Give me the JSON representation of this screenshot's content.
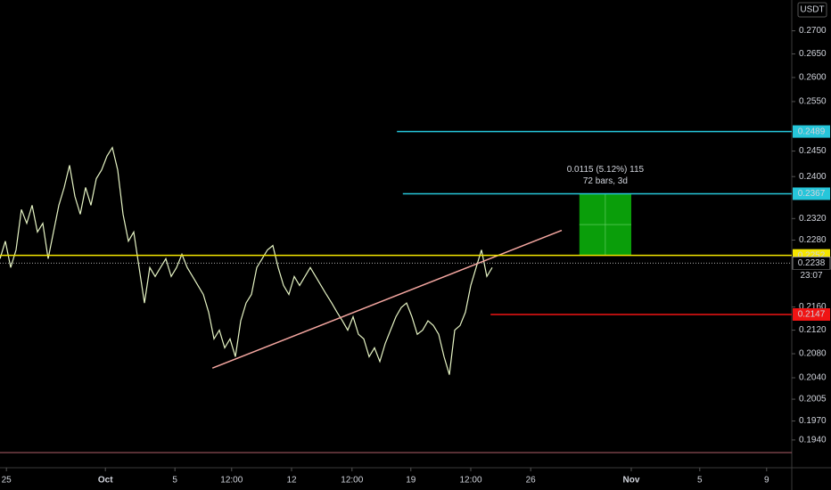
{
  "chart_data": {
    "type": "line",
    "currency": "USDT",
    "log_scale": true,
    "grid": false,
    "series": [
      {
        "color": "#e6f4c4",
        "values": [
          0.2246,
          0.2278,
          0.223,
          0.2262,
          0.2337,
          0.2311,
          0.2345,
          0.2295,
          0.2311,
          0.2246,
          0.2295,
          0.2345,
          0.2379,
          0.2422,
          0.2362,
          0.2328,
          0.2379,
          0.2345,
          0.2396,
          0.2413,
          0.244,
          0.2457,
          0.2413,
          0.2328,
          0.2278,
          0.2295,
          0.223,
          0.2167,
          0.223,
          0.2214,
          0.223,
          0.2246,
          0.2214,
          0.223,
          0.2254,
          0.223,
          0.2214,
          0.2198,
          0.2182,
          0.2151,
          0.2105,
          0.212,
          0.209,
          0.2105,
          0.2075,
          0.2136,
          0.2167,
          0.2182,
          0.223,
          0.2246,
          0.2262,
          0.227,
          0.223,
          0.2198,
          0.2182,
          0.2214,
          0.2198,
          0.2214,
          0.223,
          0.2214,
          0.2198,
          0.2182,
          0.2167,
          0.2151,
          0.2136,
          0.212,
          0.2143,
          0.2113,
          0.2105,
          0.2075,
          0.209,
          0.2067,
          0.2097,
          0.212,
          0.2143,
          0.2159,
          0.2167,
          0.2143,
          0.2113,
          0.212,
          0.2136,
          0.2128,
          0.2113,
          0.2075,
          0.2045,
          0.212,
          0.2128,
          0.2151,
          0.2198,
          0.223,
          0.2262,
          0.2214,
          0.223
        ]
      }
    ],
    "xlim": [
      0,
      148
    ],
    "xticks": [
      {
        "value": 1.2,
        "label": "25"
      },
      {
        "value": 19.7,
        "label": "Oct"
      },
      {
        "value": 32.7,
        "label": "5"
      },
      {
        "value": 43.3,
        "label": "12:00"
      },
      {
        "value": 54.5,
        "label": "12"
      },
      {
        "value": 65.8,
        "label": "12:00"
      },
      {
        "value": 76.8,
        "label": "19"
      },
      {
        "value": 88,
        "label": "12:00"
      },
      {
        "value": 99.2,
        "label": "26"
      },
      {
        "value": 118,
        "label": "Nov"
      },
      {
        "value": 130.8,
        "label": "5"
      },
      {
        "value": 143.3,
        "label": "9"
      }
    ],
    "ylim": [
      0.1897,
      0.2768
    ],
    "yticks": [
      {
        "value": 0.27,
        "label": "0.2700"
      },
      {
        "value": 0.265,
        "label": "0.2650"
      },
      {
        "value": 0.26,
        "label": "0.2600"
      },
      {
        "value": 0.255,
        "label": "0.2550"
      },
      {
        "value": 0.245,
        "label": "0.2450"
      },
      {
        "value": 0.24,
        "label": "0.2400"
      },
      {
        "value": 0.232,
        "label": "0.2320"
      },
      {
        "value": 0.228,
        "label": "0.2280"
      },
      {
        "value": 0.216,
        "label": "0.2160"
      },
      {
        "value": 0.212,
        "label": "0.2120"
      },
      {
        "value": 0.208,
        "label": "0.2080"
      },
      {
        "value": 0.204,
        "label": "0.2040"
      },
      {
        "value": 0.2005,
        "label": "0.2005"
      },
      {
        "value": 0.197,
        "label": "0.1970"
      },
      {
        "value": 0.194,
        "label": "0.1940"
      }
    ],
    "levels": [
      {
        "value": 0.2489,
        "color": "#26c6da",
        "start": 74.2
      },
      {
        "value": 0.2367,
        "color": "#26c6da",
        "start": 75.3
      },
      {
        "value": 0.2252,
        "color": "#f5e600",
        "start": 0
      },
      {
        "value": 0.2147,
        "color": "#f01414",
        "start": 91.7
      }
    ],
    "last_price": {
      "value": 0.2238,
      "countdown": "23:07"
    },
    "trendline": {
      "color": "#f4a6a0",
      "x": [
        39.7,
        105
      ],
      "y": [
        0.2056,
        0.2298
      ]
    },
    "measure": {
      "x": [
        108.3,
        118
      ],
      "y": [
        0.2252,
        0.2367
      ],
      "color": "#0a9e0a",
      "text": "0.0115 (5.12%) 115",
      "bars": "72 bars, 3d"
    }
  }
}
